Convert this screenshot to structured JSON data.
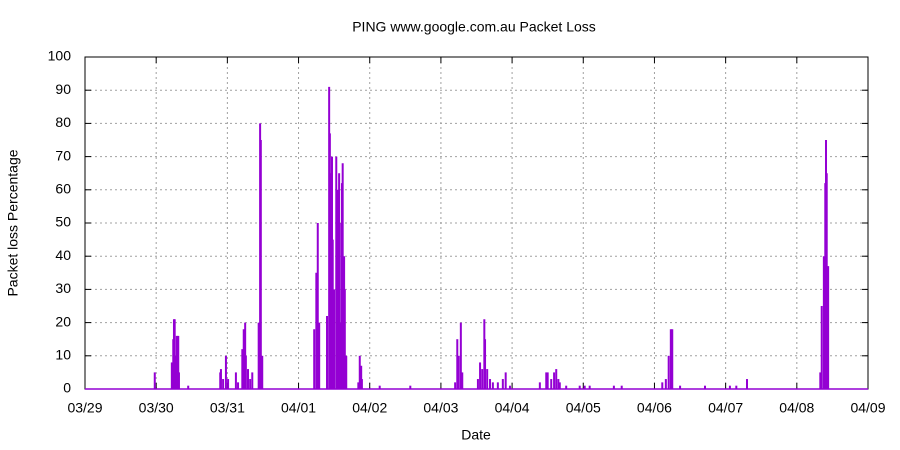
{
  "chart_data": {
    "type": "impulse",
    "title": "PING www.google.com.au Packet Loss",
    "x_label": "Date",
    "y_label": "Packet loss Percentage",
    "color": "#9400d3",
    "grid": true,
    "xlim": [
      0,
      11
    ],
    "ylim": [
      0,
      100
    ],
    "xticks": [
      {
        "value": 0,
        "label": "03/29"
      },
      {
        "value": 1,
        "label": "03/30"
      },
      {
        "value": 2,
        "label": "03/31"
      },
      {
        "value": 3,
        "label": "04/01"
      },
      {
        "value": 4,
        "label": "04/02"
      },
      {
        "value": 5,
        "label": "04/03"
      },
      {
        "value": 6,
        "label": "04/04"
      },
      {
        "value": 7,
        "label": "04/05"
      },
      {
        "value": 8,
        "label": "04/06"
      },
      {
        "value": 9,
        "label": "04/07"
      },
      {
        "value": 10,
        "label": "04/08"
      },
      {
        "value": 11,
        "label": "04/09"
      }
    ],
    "yticks": [
      0,
      10,
      20,
      30,
      40,
      50,
      60,
      70,
      80,
      90,
      100
    ],
    "x": [
      0.98,
      1.22,
      1.24,
      1.25,
      1.26,
      1.28,
      1.29,
      1.31,
      1.32,
      1.45,
      1.9,
      1.91,
      1.94,
      1.98,
      2.01,
      2.12,
      2.15,
      2.21,
      2.23,
      2.25,
      2.26,
      2.29,
      2.32,
      2.35,
      2.44,
      2.46,
      2.47,
      2.49,
      3.22,
      3.25,
      3.27,
      3.29,
      3.4,
      3.43,
      3.44,
      3.46,
      3.47,
      3.48,
      3.5,
      3.53,
      3.54,
      3.55,
      3.57,
      3.58,
      3.6,
      3.61,
      3.62,
      3.64,
      3.65,
      3.67,
      3.84,
      3.86,
      3.88,
      3.89,
      4.14,
      4.57,
      5.2,
      5.23,
      5.25,
      5.28,
      5.3,
      5.52,
      5.55,
      5.58,
      5.61,
      5.62,
      5.65,
      5.69,
      5.73,
      5.8,
      5.87,
      5.91,
      5.97,
      6.39,
      6.48,
      6.5,
      6.55,
      6.59,
      6.62,
      6.65,
      6.67,
      6.76,
      6.95,
      7.02,
      7.09,
      7.43,
      7.54,
      8.11,
      8.16,
      8.2,
      8.23,
      8.25,
      8.36,
      8.71,
      9.06,
      9.15,
      9.3,
      10.33,
      10.35,
      10.38,
      10.4,
      10.41,
      10.42,
      10.44
    ],
    "values": [
      5,
      8,
      15,
      21,
      21,
      10,
      16,
      16,
      5,
      1,
      5,
      6,
      3,
      10,
      3,
      5,
      2,
      12,
      18,
      20,
      10,
      6,
      3,
      5,
      20,
      80,
      75,
      10,
      18,
      35,
      50,
      20,
      22,
      91,
      77,
      65,
      70,
      45,
      30,
      70,
      55,
      60,
      65,
      20,
      50,
      62,
      68,
      40,
      30,
      10,
      2,
      10,
      7,
      3,
      1,
      1,
      2,
      15,
      10,
      20,
      5,
      3,
      8,
      6,
      21,
      15,
      6,
      3,
      2,
      2,
      3,
      5,
      1,
      2,
      5,
      5,
      3,
      5,
      6,
      3,
      2,
      1,
      1,
      1,
      1,
      1,
      1,
      2,
      3,
      10,
      18,
      18,
      1,
      1,
      1,
      1,
      3,
      5,
      25,
      40,
      62,
      75,
      65,
      37
    ]
  }
}
